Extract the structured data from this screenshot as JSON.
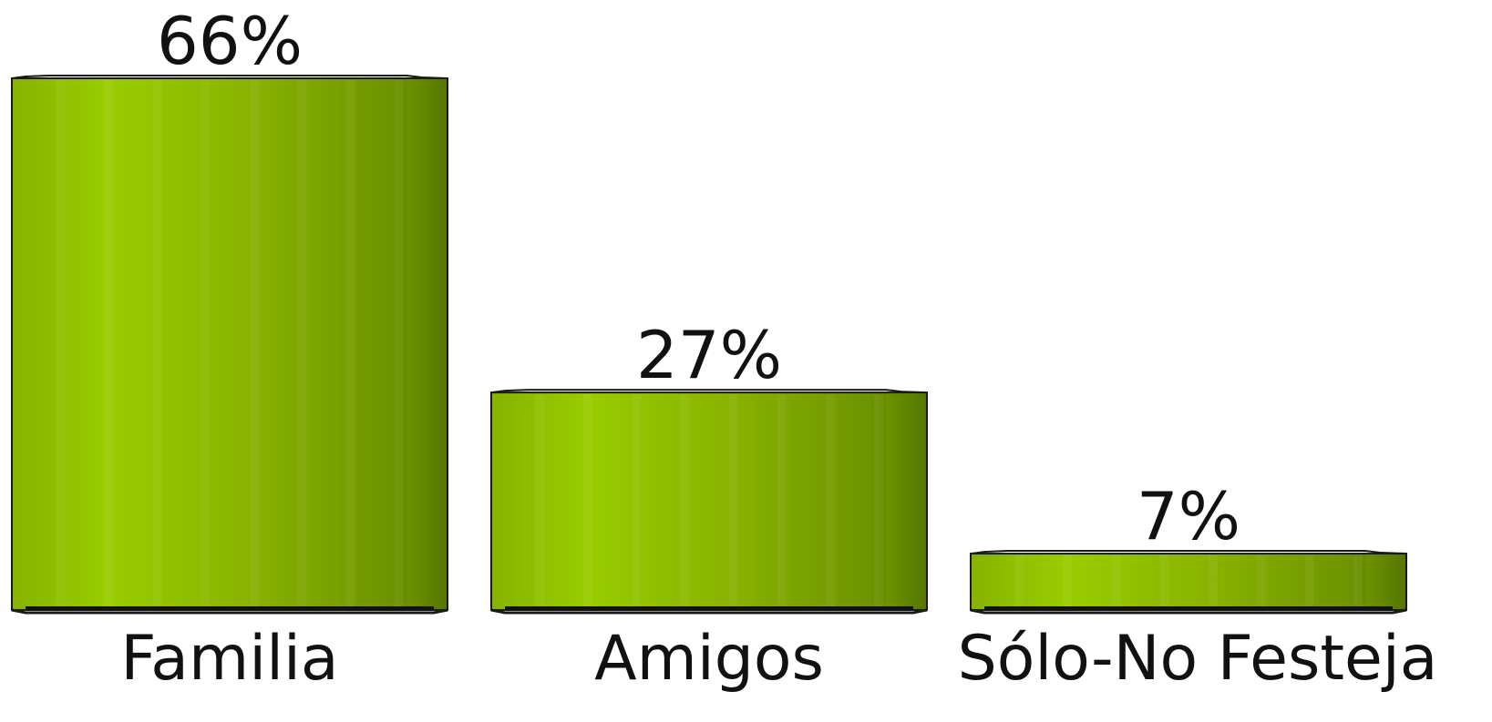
{
  "chart_data": {
    "type": "bar",
    "title": "",
    "xlabel": "",
    "ylabel": "",
    "categories": [
      "Familia",
      "Amigos",
      "Sólo-No Festeja"
    ],
    "values": [
      66,
      27,
      7
    ],
    "value_labels": [
      "66%",
      "27%",
      "7%"
    ],
    "unit": "%",
    "ylim": [
      0,
      66
    ],
    "grid": false,
    "legend": "none",
    "colors": {
      "bar_light": "#99cc00",
      "bar_mid": "#85ad00",
      "bar_dark": "#5f8300",
      "outline": "#1a1a1a",
      "text": "#111111"
    }
  }
}
